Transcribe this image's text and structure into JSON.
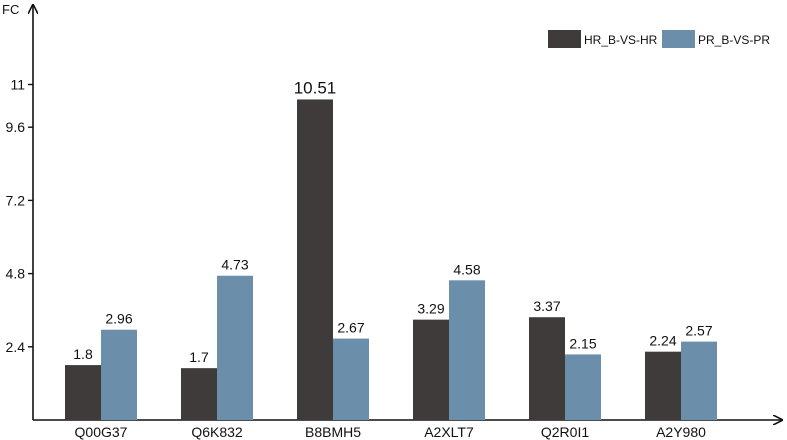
{
  "chart_data": {
    "type": "bar",
    "title": "",
    "xlabel": "",
    "ylabel": "FC",
    "categories": [
      "Q00G37",
      "Q6K832",
      "B8BMH5",
      "A2XLT7",
      "Q2R0I1",
      "A2Y980"
    ],
    "series": [
      {
        "name": "HR_B-VS-HR",
        "color": "#3f3b3b",
        "values": [
          1.8,
          1.7,
          10.51,
          3.29,
          3.37,
          2.24
        ]
      },
      {
        "name": "PR_B-VS-PR",
        "color": "#6b8fab",
        "values": [
          2.96,
          4.73,
          2.67,
          4.58,
          2.15,
          2.57
        ]
      }
    ],
    "yticks": [
      2.4,
      4.8,
      7.2,
      9.6,
      11
    ],
    "ytick_labels": [
      "2.4",
      "4.8",
      "7.2",
      "9.6",
      "11"
    ],
    "ylim": [
      0,
      12.6
    ],
    "legend_position": "top-right",
    "grid": false
  }
}
